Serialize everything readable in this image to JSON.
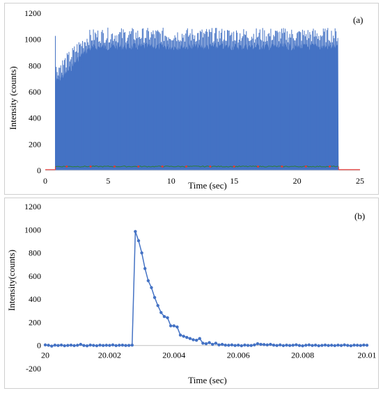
{
  "chart_data": [
    {
      "id": "a",
      "type": "bar",
      "panel_label": "(a)",
      "xlabel": "Time (sec)",
      "ylabel": "Intensity (counts)",
      "xlim": [
        0,
        25
      ],
      "ylim": [
        0,
        1200
      ],
      "xticks": [
        0,
        5,
        10,
        15,
        20,
        25
      ],
      "yticks": [
        0,
        200,
        400,
        600,
        800,
        1000,
        1200
      ],
      "grid": "none",
      "colors": {
        "signal": "#4472C4",
        "baseline": "#2e7d32",
        "background_trace": "#e53935"
      },
      "signal": {
        "x_start": 0.8,
        "x_end": 23.3,
        "envelope": [
          [
            0.8,
            700
          ],
          [
            1.0,
            720
          ],
          [
            1.5,
            760
          ],
          [
            2.0,
            810
          ],
          [
            2.5,
            870
          ],
          [
            3.0,
            920
          ],
          [
            3.5,
            960
          ],
          [
            4.0,
            970
          ],
          [
            5.0,
            975
          ],
          [
            23.3,
            975
          ]
        ],
        "peak_max": 1090,
        "background_level": 0
      },
      "baseline_series": {
        "x_start": 0.8,
        "x_end": 23.3,
        "value": 30,
        "outside_value": 5
      }
    },
    {
      "id": "b",
      "type": "line",
      "panel_label": "(b)",
      "xlabel": "Time (sec)",
      "ylabel": "Intensity(counts)",
      "xlim": [
        20,
        20.01
      ],
      "ylim": [
        -200,
        1200
      ],
      "xticks": [
        20,
        20.002,
        20.004,
        20.006,
        20.008,
        20.01
      ],
      "xtick_labels": [
        "20",
        "20.002",
        "20.004",
        "20.006",
        "20.008",
        "20.01"
      ],
      "yticks": [
        -200,
        0,
        200,
        400,
        600,
        800,
        1000,
        1200
      ],
      "grid": "none",
      "colors": {
        "line": "#4472C4"
      },
      "series": [
        {
          "x": [
            20.0,
            20.0001,
            20.0002,
            20.0003,
            20.0004,
            20.0005,
            20.0006,
            20.0007,
            20.0008,
            20.0009,
            20.001,
            20.0011,
            20.0012,
            20.0013,
            20.0014,
            20.0015,
            20.0016,
            20.0017,
            20.0018,
            20.0019,
            20.002,
            20.0021,
            20.0022,
            20.0023,
            20.0024,
            20.0025,
            20.0026,
            20.0027,
            20.0028,
            20.0029,
            20.003,
            20.0031,
            20.0032,
            20.0033,
            20.0034,
            20.0035,
            20.0036,
            20.0037,
            20.0038,
            20.0039,
            20.004,
            20.0041,
            20.0042,
            20.0043,
            20.0044,
            20.0045,
            20.0046,
            20.0047,
            20.0048,
            20.0049,
            20.005,
            20.0051,
            20.0052,
            20.0053,
            20.0054,
            20.0055,
            20.0056,
            20.0057,
            20.0058,
            20.0059,
            20.006,
            20.0061,
            20.0062,
            20.0063,
            20.0064,
            20.0065,
            20.0066,
            20.0067,
            20.0068,
            20.0069,
            20.007,
            20.0071,
            20.0072,
            20.0073,
            20.0074,
            20.0075,
            20.0076,
            20.0077,
            20.0078,
            20.0079,
            20.008,
            20.0081,
            20.0082,
            20.0083,
            20.0084,
            20.0085,
            20.0086,
            20.0087,
            20.0088,
            20.0089,
            20.009,
            20.0091,
            20.0092,
            20.0093,
            20.0094,
            20.0095,
            20.0096,
            20.0097,
            20.0098,
            20.0099,
            20.01
          ],
          "values": [
            5,
            2,
            -5,
            3,
            0,
            4,
            -2,
            1,
            3,
            -1,
            2,
            10,
            0,
            -3,
            4,
            1,
            -2,
            3,
            0,
            2,
            1,
            5,
            -1,
            2,
            3,
            0,
            1,
            3,
            985,
            905,
            800,
            665,
            560,
            500,
            415,
            345,
            285,
            250,
            240,
            170,
            170,
            160,
            90,
            80,
            70,
            60,
            50,
            45,
            60,
            20,
            15,
            25,
            10,
            20,
            5,
            10,
            3,
            2,
            5,
            0,
            3,
            -2,
            4,
            1,
            0,
            5,
            15,
            10,
            8,
            5,
            10,
            3,
            0,
            5,
            -1,
            3,
            0,
            2,
            6,
            0,
            -3,
            2,
            5,
            0,
            3,
            -2,
            1,
            4,
            0,
            2,
            -1,
            3,
            0,
            5,
            1,
            -2,
            3,
            2,
            0,
            4,
            2
          ]
        }
      ]
    }
  ]
}
